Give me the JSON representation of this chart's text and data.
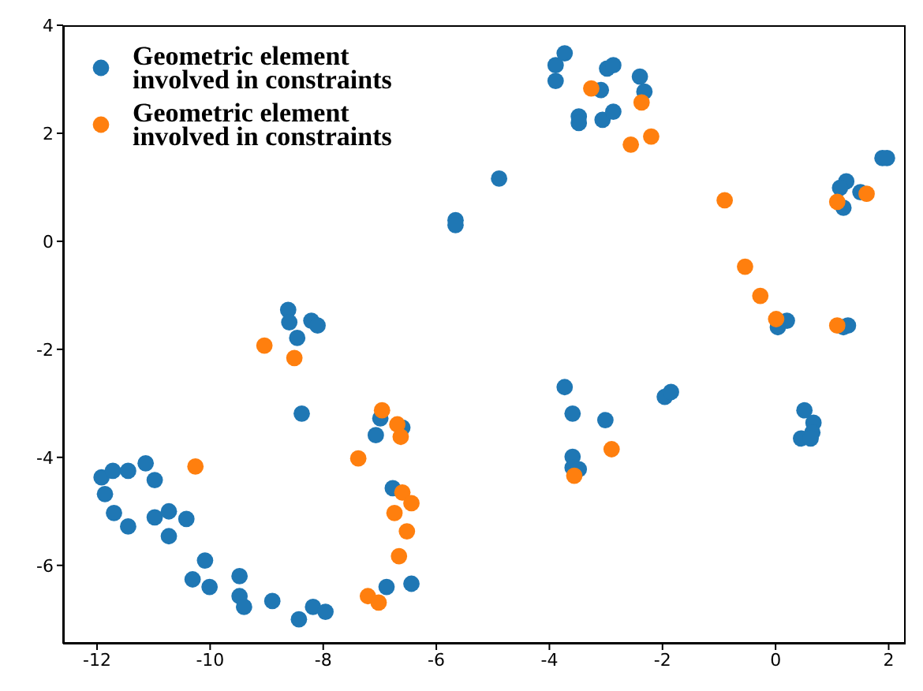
{
  "chart_data": {
    "type": "scatter",
    "xlim": [
      -12.6,
      2.3
    ],
    "ylim": [
      -7.45,
      4
    ],
    "xticks": [
      -12,
      -10,
      -8,
      -6,
      -4,
      -2,
      0,
      2
    ],
    "yticks": [
      -6,
      -4,
      -2,
      0,
      2,
      4
    ],
    "grid": false,
    "legend": "top left",
    "marker": "circle",
    "series": [
      {
        "name": "Geometric element involved in constraints",
        "color": "#1f77b4",
        "x": [
          -8.62,
          -8.6,
          -8.21,
          -8.1,
          -8.46,
          -8.38,
          -11.92,
          -11.72,
          -11.45,
          -11.14,
          -10.98,
          -11.86,
          -11.7,
          -11.45,
          -10.98,
          -10.73,
          -10.42,
          -10.73,
          -10.09,
          -10.31,
          -10.01,
          -9.48,
          -9.48,
          -9.4,
          -8.9,
          -8.43,
          -8.18,
          -7.96,
          -6.99,
          -7.07,
          -6.6,
          -6.77,
          -6.88,
          -6.44,
          -3.73,
          -3.59,
          -3.01,
          -3.59,
          -3.59,
          -3.48,
          -3.73,
          -3.89,
          -3.89,
          -2.98,
          -2.87,
          -3.09,
          -2.4,
          -2.32,
          -3.48,
          -3.48,
          -3.06,
          -2.87,
          -4.89,
          -5.66,
          -5.66,
          -1.96,
          -1.85,
          0.51,
          0.67,
          0.65,
          0.45,
          0.62,
          1.89,
          1.97,
          1.25,
          1.14,
          1.5,
          1.2,
          0.2,
          0.04,
          1.28,
          1.2
        ],
        "values": [
          -1.27,
          -1.5,
          -1.47,
          -1.56,
          -1.79,
          -3.19,
          -4.37,
          -4.25,
          -4.25,
          -4.11,
          -4.42,
          -4.68,
          -5.03,
          -5.28,
          -5.11,
          -5.0,
          -5.14,
          -5.46,
          -5.91,
          -6.26,
          -6.4,
          -6.2,
          -6.57,
          -6.77,
          -6.66,
          -7.0,
          -6.77,
          -6.86,
          -3.28,
          -3.59,
          -3.45,
          -4.57,
          -6.4,
          -6.34,
          -2.7,
          -3.19,
          -3.31,
          -3.99,
          -4.19,
          -4.22,
          3.48,
          3.26,
          2.97,
          3.2,
          3.26,
          2.8,
          3.05,
          2.77,
          2.31,
          2.19,
          2.25,
          2.4,
          1.16,
          0.39,
          0.3,
          -2.88,
          -2.79,
          -3.13,
          -3.36,
          -3.54,
          -3.65,
          -3.65,
          1.54,
          1.54,
          1.11,
          0.99,
          0.91,
          0.62,
          -1.47,
          -1.59,
          -1.56,
          -1.59
        ]
      },
      {
        "name": "Geometric element involved in constraints",
        "color": "#ff7f0e",
        "x": [
          -9.04,
          -8.51,
          -10.26,
          -6.96,
          -6.69,
          -6.63,
          -7.38,
          -6.6,
          -6.44,
          -6.74,
          -6.52,
          -6.66,
          -7.21,
          -7.02,
          -2.9,
          -3.56,
          -3.26,
          -2.37,
          -2.56,
          -2.2,
          -0.9,
          1.09,
          1.61,
          -0.54,
          -0.27,
          0.01,
          1.09
        ],
        "values": [
          -1.93,
          -2.16,
          -4.17,
          -3.13,
          -3.39,
          -3.62,
          -4.02,
          -4.65,
          -4.85,
          -5.03,
          -5.37,
          -5.83,
          -6.57,
          -6.69,
          -3.85,
          -4.34,
          2.83,
          2.57,
          1.79,
          1.94,
          0.76,
          0.73,
          0.88,
          -0.47,
          -1.01,
          -1.44,
          -1.56
        ]
      }
    ]
  }
}
